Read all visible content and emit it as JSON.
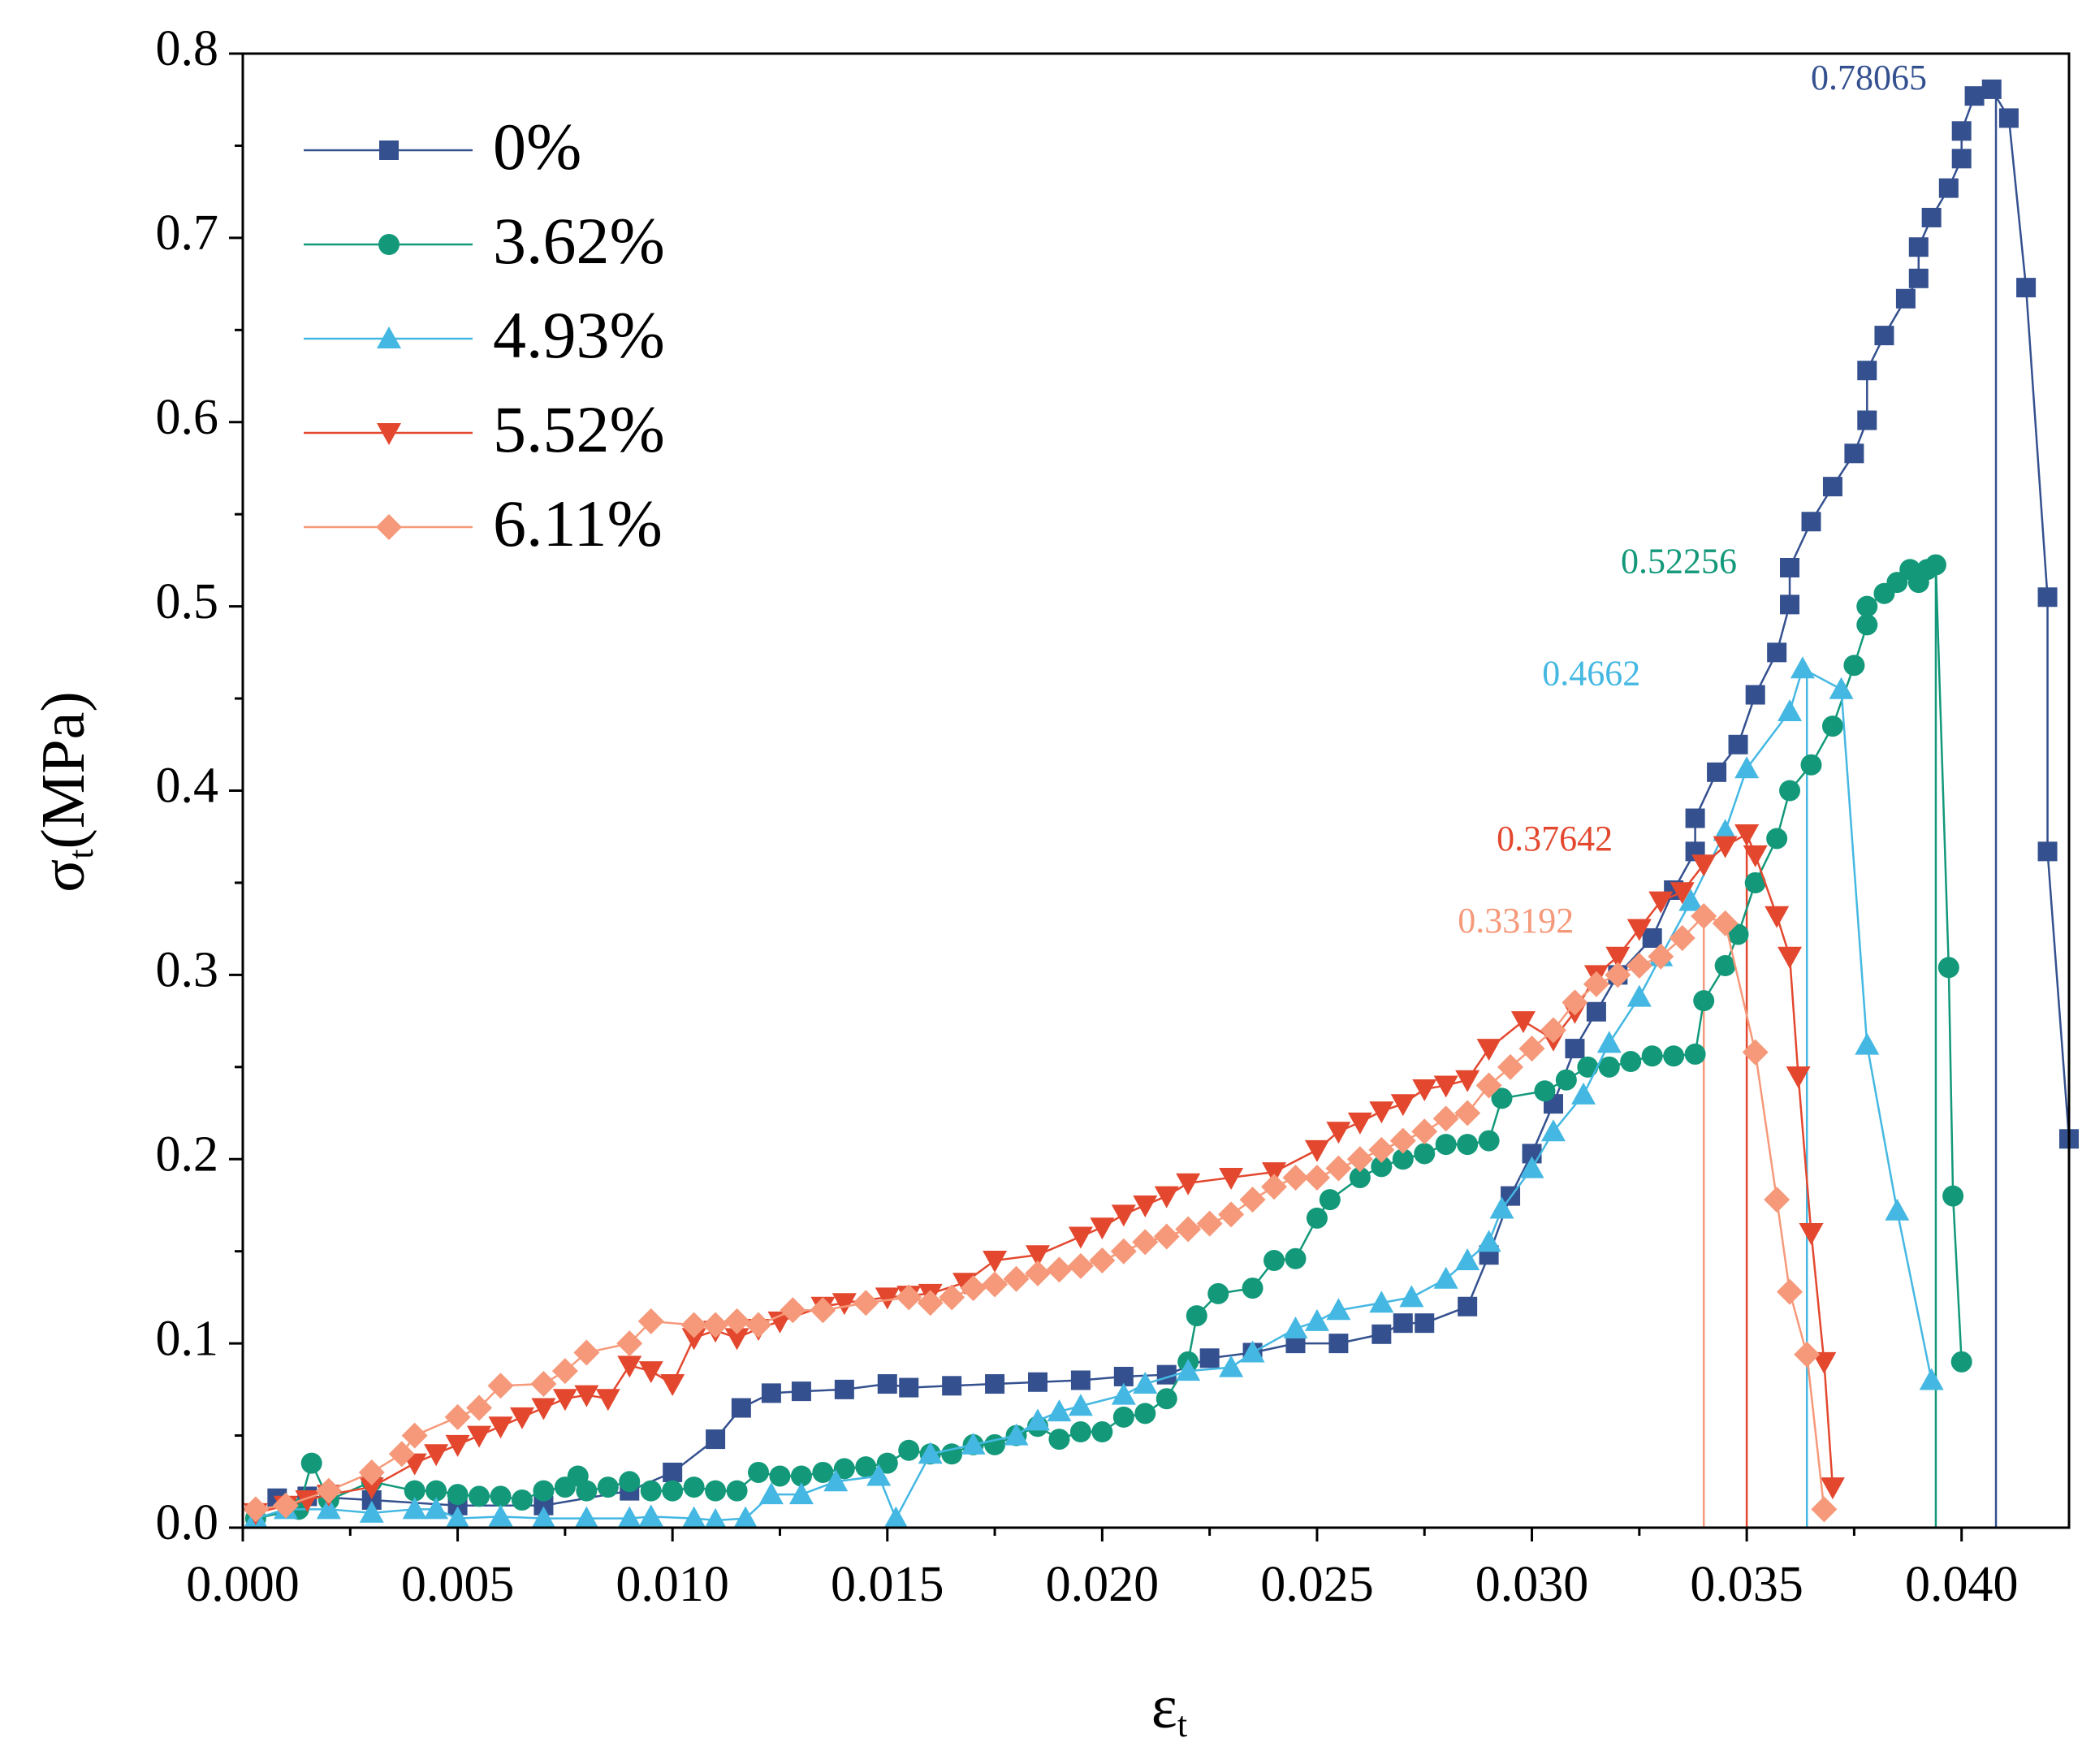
{
  "chart_data": {
    "type": "line",
    "xlabel": {
      "text": "ε",
      "sub": "t"
    },
    "ylabel": {
      "text": "σ",
      "sub": "t",
      "unit": "(MPa)"
    },
    "xlim": [
      0,
      0.0425
    ],
    "ylim": [
      0,
      0.8
    ],
    "xticks": [
      {
        "value": 0,
        "label": "0.000"
      },
      0.005,
      {
        "value": 0.01,
        "label": "0.010"
      },
      0.015,
      {
        "value": 0.02,
        "label": "0.020"
      },
      0.025,
      {
        "value": 0.03,
        "label": "0.030"
      },
      0.035,
      {
        "value": 0.04,
        "label": "0.040"
      }
    ],
    "xminor_ticks": [
      0.0025,
      0.0075,
      0.0125,
      0.0175,
      0.0225,
      0.0275,
      0.0325,
      0.0375
    ],
    "yticks": [
      {
        "value": 0,
        "label": "0.0"
      },
      0.1,
      0.2,
      0.3,
      0.4,
      0.5,
      0.6,
      0.7,
      0.8
    ],
    "yminor_ticks": [
      0.05,
      0.15,
      0.25,
      0.35,
      0.45,
      0.55,
      0.65,
      0.75
    ],
    "legend": "upper left",
    "series": [
      {
        "name": "0%",
        "color": "#34508f",
        "marker": "square",
        "x": [
          0.0008,
          0.0015,
          0.003,
          0.005,
          0.007,
          0.009,
          0.01,
          0.011,
          0.0116,
          0.0123,
          0.013,
          0.014,
          0.015,
          0.0155,
          0.0165,
          0.0175,
          0.0185,
          0.0195,
          0.0205,
          0.0215,
          0.0225,
          0.0235,
          0.0245,
          0.0255,
          0.0265,
          0.027,
          0.0275,
          0.0285,
          0.029,
          0.0295,
          0.03,
          0.0305,
          0.031,
          0.0315,
          0.032,
          0.0328,
          0.0333,
          0.0338,
          0.0338,
          0.0343,
          0.0348,
          0.0352,
          0.0357,
          0.036,
          0.036,
          0.0365,
          0.037,
          0.0375,
          0.0378,
          0.0378,
          0.0382,
          0.0387,
          0.039,
          0.039,
          0.0393,
          0.0397,
          0.04,
          0.04,
          0.0403,
          0.0407,
          0.0411,
          0.0415,
          0.042,
          0.042,
          0.0425
        ],
        "values": [
          0.016,
          0.017,
          0.015,
          0.012,
          0.012,
          0.02,
          0.03,
          0.048,
          0.065,
          0.073,
          0.074,
          0.075,
          0.078,
          0.076,
          0.077,
          0.078,
          0.079,
          0.08,
          0.082,
          0.083,
          0.092,
          0.095,
          0.1,
          0.1,
          0.105,
          0.111,
          0.111,
          0.12,
          0.148,
          0.18,
          0.203,
          0.23,
          0.26,
          0.28,
          0.3,
          0.32,
          0.346,
          0.367,
          0.385,
          0.41,
          0.425,
          0.452,
          0.475,
          0.501,
          0.521,
          0.546,
          0.565,
          0.583,
          0.601,
          0.628,
          0.647,
          0.667,
          0.678,
          0.695,
          0.711,
          0.727,
          0.743,
          0.758,
          0.777,
          0.78065,
          0.765,
          0.673,
          0.505,
          0.367,
          0.211
        ]
      },
      {
        "name": "3.62%",
        "color": "#13997a",
        "marker": "circle",
        "x": [
          0.0003,
          0.0013,
          0.0016,
          0.002,
          0.003,
          0.004,
          0.0045,
          0.005,
          0.0055,
          0.006,
          0.0065,
          0.007,
          0.0075,
          0.0078,
          0.008,
          0.0085,
          0.009,
          0.0095,
          0.01,
          0.0105,
          0.011,
          0.0115,
          0.012,
          0.0125,
          0.013,
          0.0135,
          0.014,
          0.0145,
          0.015,
          0.0155,
          0.016,
          0.0165,
          0.017,
          0.0175,
          0.018,
          0.0185,
          0.019,
          0.0195,
          0.02,
          0.0205,
          0.021,
          0.0215,
          0.022,
          0.0222,
          0.0227,
          0.0235,
          0.024,
          0.0245,
          0.025,
          0.0253,
          0.026,
          0.0265,
          0.027,
          0.0275,
          0.028,
          0.0285,
          0.029,
          0.0293,
          0.0303,
          0.0308,
          0.0313,
          0.0318,
          0.0323,
          0.0328,
          0.0333,
          0.0338,
          0.034,
          0.0345,
          0.0348,
          0.0352,
          0.0357,
          0.036,
          0.0365,
          0.037,
          0.0375,
          0.0378,
          0.0378,
          0.0382,
          0.0385,
          0.0388,
          0.039,
          0.0392,
          0.0394,
          0.0397,
          0.0398,
          0.04
        ],
        "values": [
          0.005,
          0.01,
          0.035,
          0.015,
          0.025,
          0.02,
          0.02,
          0.018,
          0.017,
          0.017,
          0.015,
          0.02,
          0.022,
          0.028,
          0.02,
          0.022,
          0.025,
          0.02,
          0.02,
          0.022,
          0.02,
          0.02,
          0.03,
          0.028,
          0.028,
          0.03,
          0.032,
          0.033,
          0.035,
          0.042,
          0.04,
          0.04,
          0.045,
          0.045,
          0.05,
          0.055,
          0.048,
          0.052,
          0.052,
          0.06,
          0.062,
          0.07,
          0.09,
          0.115,
          0.127,
          0.13,
          0.145,
          0.146,
          0.168,
          0.178,
          0.19,
          0.196,
          0.2,
          0.203,
          0.208,
          0.208,
          0.21,
          0.233,
          0.237,
          0.243,
          0.25,
          0.25,
          0.253,
          0.256,
          0.256,
          0.257,
          0.286,
          0.305,
          0.322,
          0.35,
          0.374,
          0.4,
          0.414,
          0.435,
          0.468,
          0.49,
          0.5,
          0.507,
          0.513,
          0.52,
          0.513,
          0.52,
          0.52256,
          0.304,
          0.18,
          0.09
        ]
      },
      {
        "name": "4.93%",
        "color": "#44b8e2",
        "marker": "triangle-up",
        "x": [
          0.0003,
          0.001,
          0.002,
          0.003,
          0.004,
          0.0045,
          0.005,
          0.006,
          0.007,
          0.008,
          0.009,
          0.0095,
          0.0105,
          0.011,
          0.0117,
          0.0123,
          0.013,
          0.0138,
          0.0148,
          0.0152,
          0.016,
          0.017,
          0.018,
          0.0185,
          0.019,
          0.0195,
          0.0205,
          0.021,
          0.022,
          0.023,
          0.0235,
          0.0245,
          0.025,
          0.0255,
          0.0265,
          0.0272,
          0.028,
          0.0285,
          0.029,
          0.0293,
          0.03,
          0.0305,
          0.0312,
          0.0318,
          0.0325,
          0.033,
          0.0337,
          0.0345,
          0.035,
          0.036,
          0.0363,
          0.0372,
          0.0378,
          0.0385,
          0.0393
        ],
        "values": [
          0.005,
          0.01,
          0.01,
          0.008,
          0.01,
          0.01,
          0.005,
          0.006,
          0.005,
          0.005,
          0.005,
          0.006,
          0.005,
          0.004,
          0.005,
          0.018,
          0.018,
          0.025,
          0.028,
          0.005,
          0.04,
          0.045,
          0.05,
          0.058,
          0.063,
          0.066,
          0.072,
          0.078,
          0.085,
          0.087,
          0.095,
          0.108,
          0.112,
          0.118,
          0.122,
          0.125,
          0.135,
          0.145,
          0.155,
          0.173,
          0.195,
          0.215,
          0.235,
          0.263,
          0.288,
          0.31,
          0.34,
          0.378,
          0.412,
          0.443,
          0.4662,
          0.455,
          0.262,
          0.172,
          0.08
        ]
      },
      {
        "name": "5.52%",
        "color": "#e3482f",
        "marker": "triangle-down",
        "x": [
          0.0003,
          0.001,
          0.0015,
          0.002,
          0.003,
          0.004,
          0.0045,
          0.005,
          0.0055,
          0.006,
          0.0065,
          0.007,
          0.0075,
          0.008,
          0.0085,
          0.009,
          0.0095,
          0.01,
          0.0105,
          0.011,
          0.0115,
          0.012,
          0.0125,
          0.0135,
          0.014,
          0.015,
          0.0155,
          0.016,
          0.0168,
          0.0175,
          0.0185,
          0.0195,
          0.02,
          0.0205,
          0.021,
          0.0215,
          0.022,
          0.023,
          0.024,
          0.025,
          0.0255,
          0.026,
          0.0265,
          0.027,
          0.0275,
          0.028,
          0.0285,
          0.029,
          0.0298,
          0.0305,
          0.031,
          0.0315,
          0.032,
          0.0325,
          0.033,
          0.0335,
          0.034,
          0.0345,
          0.035,
          0.0352,
          0.0357,
          0.036,
          0.0362,
          0.0365,
          0.0368,
          0.037
        ],
        "values": [
          0.008,
          0.012,
          0.015,
          0.018,
          0.022,
          0.035,
          0.04,
          0.045,
          0.05,
          0.055,
          0.06,
          0.065,
          0.07,
          0.072,
          0.07,
          0.088,
          0.085,
          0.078,
          0.103,
          0.107,
          0.103,
          0.108,
          0.112,
          0.12,
          0.122,
          0.125,
          0.126,
          0.127,
          0.133,
          0.145,
          0.148,
          0.158,
          0.163,
          0.17,
          0.175,
          0.18,
          0.187,
          0.19,
          0.193,
          0.205,
          0.215,
          0.22,
          0.226,
          0.23,
          0.238,
          0.24,
          0.243,
          0.26,
          0.275,
          0.265,
          0.28,
          0.3,
          0.31,
          0.325,
          0.34,
          0.345,
          0.36,
          0.37,
          0.37642,
          0.365,
          0.332,
          0.31,
          0.245,
          0.16,
          0.09,
          0.022
        ]
      },
      {
        "name": "6.11%",
        "color": "#f5997a",
        "marker": "diamond",
        "x": [
          0.0003,
          0.001,
          0.002,
          0.003,
          0.0037,
          0.004,
          0.005,
          0.0055,
          0.006,
          0.007,
          0.0075,
          0.008,
          0.009,
          0.0095,
          0.0105,
          0.011,
          0.0115,
          0.012,
          0.0128,
          0.0135,
          0.0145,
          0.0155,
          0.016,
          0.0165,
          0.017,
          0.0175,
          0.018,
          0.0185,
          0.019,
          0.0195,
          0.02,
          0.0205,
          0.021,
          0.0215,
          0.022,
          0.0225,
          0.023,
          0.0235,
          0.024,
          0.0245,
          0.025,
          0.0255,
          0.026,
          0.0265,
          0.027,
          0.0275,
          0.028,
          0.0285,
          0.029,
          0.0295,
          0.03,
          0.0305,
          0.031,
          0.0315,
          0.032,
          0.0325,
          0.033,
          0.0335,
          0.034,
          0.0345,
          0.0352,
          0.0357,
          0.036,
          0.0364,
          0.0368
        ],
        "values": [
          0.01,
          0.012,
          0.02,
          0.03,
          0.04,
          0.05,
          0.06,
          0.065,
          0.077,
          0.078,
          0.085,
          0.095,
          0.1,
          0.112,
          0.11,
          0.11,
          0.112,
          0.11,
          0.118,
          0.118,
          0.122,
          0.125,
          0.122,
          0.125,
          0.13,
          0.132,
          0.135,
          0.138,
          0.14,
          0.142,
          0.145,
          0.15,
          0.155,
          0.158,
          0.162,
          0.165,
          0.17,
          0.178,
          0.185,
          0.19,
          0.19,
          0.195,
          0.2,
          0.205,
          0.21,
          0.215,
          0.222,
          0.225,
          0.24,
          0.25,
          0.26,
          0.27,
          0.285,
          0.295,
          0.3,
          0.305,
          0.31,
          0.32,
          0.33192,
          0.328,
          0.258,
          0.178,
          0.128,
          0.094,
          0.01
        ]
      }
    ],
    "annotations": [
      {
        "value": 0.78065,
        "x": 0.0408
      },
      {
        "value": 0.52256,
        "x": 0.0394
      },
      {
        "value": 0.4662,
        "x": 0.0364
      },
      {
        "value": 0.37642,
        "x": 0.035
      },
      {
        "value": 0.33192,
        "x": 0.034
      }
    ]
  }
}
